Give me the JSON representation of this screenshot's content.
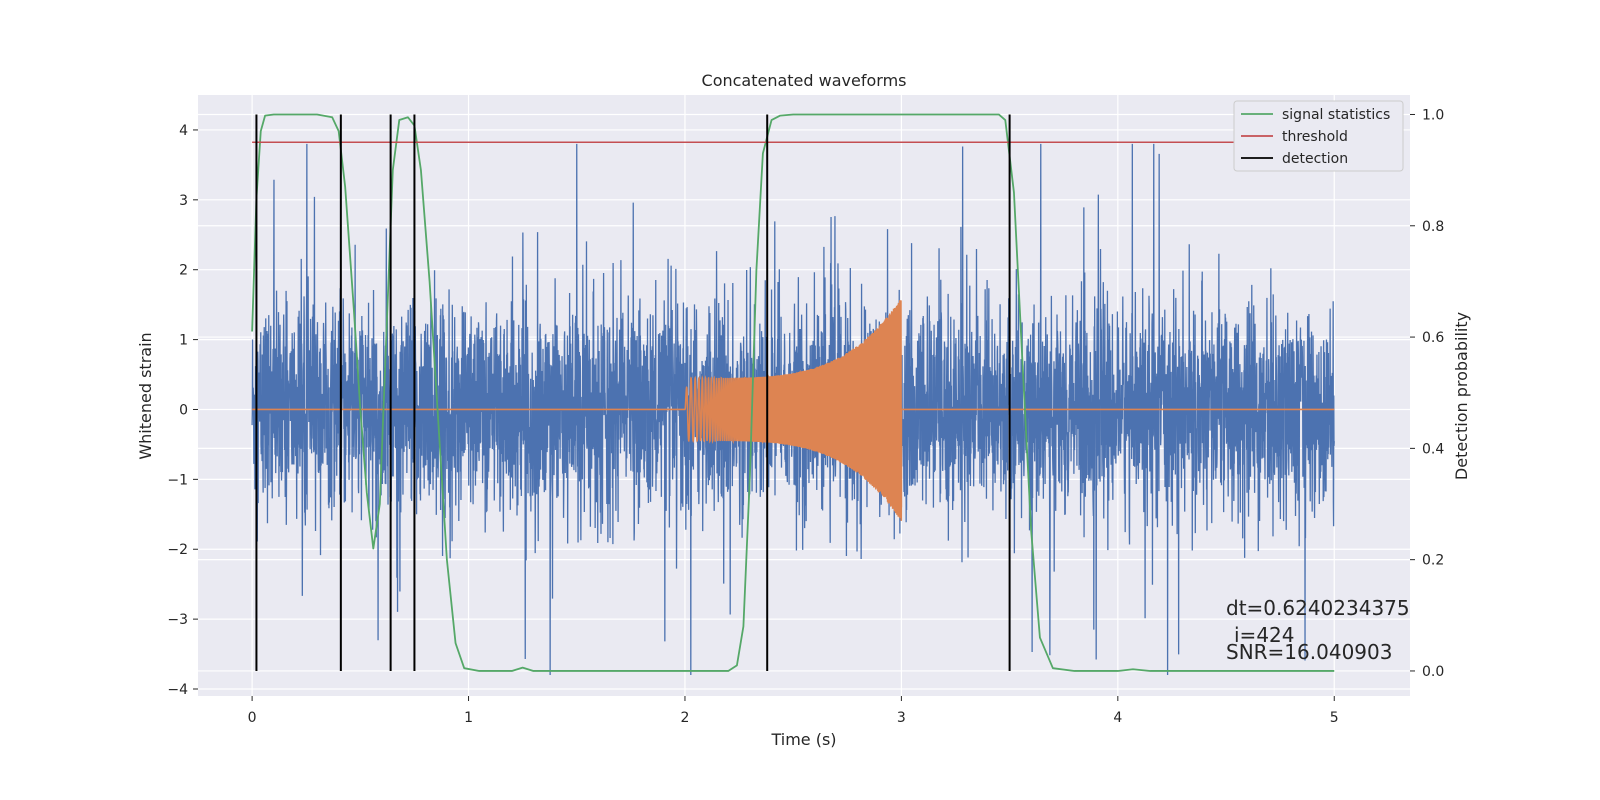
{
  "chart_data": {
    "type": "line",
    "title": "Concatenated waveforms",
    "xlabel": "Time (s)",
    "ylabel": "Whitened strain",
    "y2label": "Detection probability",
    "xlim": [
      -0.25,
      5.35
    ],
    "ylim": [
      -4.1,
      4.5
    ],
    "y2lim": [
      -0.045,
      1.035
    ],
    "xticks": [
      0,
      1,
      2,
      3,
      4,
      5
    ],
    "yticks": [
      -4,
      -3,
      -2,
      -1,
      0,
      1,
      2,
      3,
      4
    ],
    "y2ticks": [
      0.0,
      0.2,
      0.4,
      0.6,
      0.8,
      1.0
    ],
    "xtick_labels": [
      "0",
      "1",
      "2",
      "3",
      "4",
      "5"
    ],
    "ytick_labels": [
      "−4",
      "−3",
      "−2",
      "−1",
      "0",
      "1",
      "2",
      "3",
      "4"
    ],
    "y2tick_labels": [
      "0.0",
      "0.2",
      "0.4",
      "0.6",
      "0.8",
      "1.0"
    ],
    "grid": true,
    "legend_position": "top-right",
    "colors": {
      "noise": "#4c72b0",
      "chirp": "#dd8452",
      "signal_statistics": "#55a868",
      "threshold": "#c44e52",
      "detection": "#000000",
      "axes_bg": "#eaeaf2",
      "grid": "#ffffff"
    },
    "series": [
      {
        "name": "",
        "role": "whitened noise strain",
        "x_range": [
          0,
          5
        ],
        "amplitude_envelope": [
          -3.8,
          3.8
        ]
      },
      {
        "name": "",
        "role": "injected chirp",
        "x_range": [
          0,
          5
        ],
        "chirp_start": 2.0,
        "chirp_end": 3.0,
        "amplitude_start": 0.45,
        "amplitude_end": 1.6
      },
      {
        "name": "signal statistics",
        "axis": "right",
        "x": [
          0.0,
          0.02,
          0.04,
          0.06,
          0.1,
          0.2,
          0.3,
          0.37,
          0.4,
          0.43,
          0.47,
          0.5,
          0.53,
          0.56,
          0.59,
          0.62,
          0.65,
          0.68,
          0.72,
          0.75,
          0.78,
          0.82,
          0.86,
          0.9,
          0.94,
          0.98,
          1.05,
          1.2,
          1.25,
          1.3,
          1.5,
          2.0,
          2.2,
          2.24,
          2.27,
          2.3,
          2.33,
          2.36,
          2.4,
          2.44,
          2.5,
          3.0,
          3.45,
          3.48,
          3.52,
          3.56,
          3.6,
          3.64,
          3.7,
          3.8,
          4.0,
          4.07,
          4.15,
          4.5,
          5.0
        ],
        "y": [
          0.61,
          0.85,
          0.97,
          0.998,
          1.0,
          1.0,
          1.0,
          0.995,
          0.97,
          0.87,
          0.65,
          0.47,
          0.32,
          0.22,
          0.3,
          0.6,
          0.9,
          0.99,
          0.995,
          0.98,
          0.9,
          0.7,
          0.45,
          0.2,
          0.05,
          0.005,
          0.0,
          0.0,
          0.006,
          0.0,
          0.0,
          0.0,
          0.0,
          0.01,
          0.08,
          0.35,
          0.72,
          0.93,
          0.99,
          0.998,
          1.0,
          1.0,
          1.0,
          0.99,
          0.86,
          0.55,
          0.25,
          0.06,
          0.005,
          0.0,
          0.0,
          0.003,
          0.0,
          0.0,
          0.0
        ]
      },
      {
        "name": "threshold",
        "axis": "right",
        "x": [
          0,
          5.1
        ],
        "y": [
          0.95,
          0.95
        ]
      },
      {
        "name": "detection",
        "axis": "right",
        "x": [
          0.02,
          0.41,
          0.64,
          0.75,
          2.38,
          3.5
        ],
        "y_range": [
          0.0,
          1.0
        ]
      }
    ],
    "annotations": [
      "dt=0.6240234375",
      "i=424",
      "SNR=16.040903"
    ]
  }
}
